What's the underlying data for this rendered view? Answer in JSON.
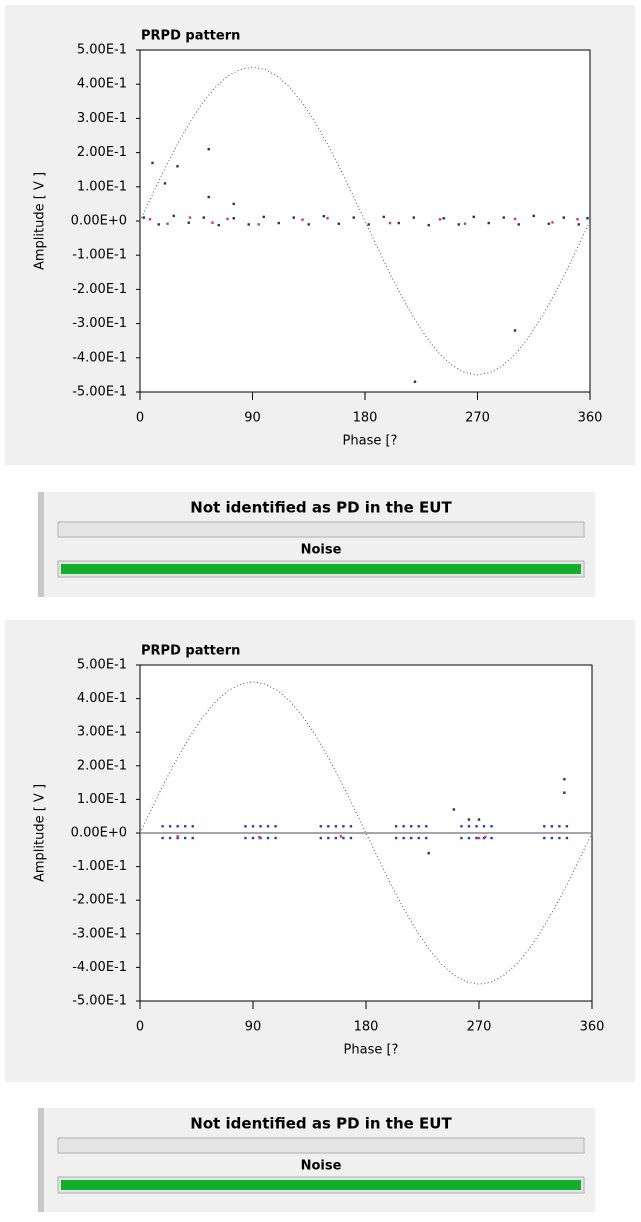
{
  "chart_data": [
    {
      "type": "scatter",
      "title": "PRPD pattern",
      "x_label": "Phase [?",
      "y_label": "Amplitude [ V ]",
      "xlim": [
        0,
        360
      ],
      "xticks": [
        0,
        90,
        180,
        270,
        360
      ],
      "ylim": [
        -0.5,
        0.5
      ],
      "yticks": [
        {
          "value": -0.5,
          "label": "-5.00E-1"
        },
        {
          "value": -0.4,
          "label": "-4.00E-1"
        },
        {
          "value": -0.3,
          "label": "-3.00E-1"
        },
        {
          "value": -0.2,
          "label": "-2.00E-1"
        },
        {
          "value": -0.1,
          "label": "-1.00E-1"
        },
        {
          "value": 0,
          "label": "0.00E+0"
        },
        {
          "value": 0.1,
          "label": "1.00E-1"
        },
        {
          "value": 0.2,
          "label": "2.00E-1"
        },
        {
          "value": 0.3,
          "label": "3.00E-1"
        },
        {
          "value": 0.4,
          "label": "4.00E-1"
        },
        {
          "value": 0.5,
          "label": "5.00E-1"
        }
      ],
      "zero_line": false,
      "series": [
        {
          "color": "#555555",
          "mode": "line",
          "x": [
            0,
            10,
            20,
            30,
            40,
            50,
            60,
            70,
            80,
            90,
            100,
            110,
            120,
            130,
            140,
            150,
            160,
            170,
            180,
            190,
            200,
            210,
            220,
            230,
            240,
            250,
            260,
            270,
            280,
            290,
            300,
            310,
            320,
            330,
            340,
            350,
            360
          ],
          "y": [
            0,
            0.078,
            0.154,
            0.225,
            0.289,
            0.345,
            0.39,
            0.423,
            0.443,
            0.45,
            0.443,
            0.423,
            0.39,
            0.345,
            0.289,
            0.225,
            0.154,
            0.078,
            0,
            -0.078,
            -0.154,
            -0.225,
            -0.289,
            -0.345,
            -0.39,
            -0.423,
            -0.443,
            -0.45,
            -0.443,
            -0.423,
            -0.39,
            -0.345,
            -0.289,
            -0.225,
            -0.154,
            -0.078,
            0
          ]
        },
        {
          "color": "#333333",
          "mode": "markers",
          "x": [
            3,
            15,
            27,
            39,
            51,
            63,
            75,
            87,
            99,
            111,
            123,
            135,
            147,
            159,
            171,
            183,
            195,
            207,
            219,
            231,
            243,
            255,
            267,
            279,
            291,
            303,
            315,
            327,
            339,
            351,
            358,
            10,
            20,
            30,
            55,
            55,
            75,
            220,
            300
          ],
          "y": [
            0.01,
            -0.01,
            0.015,
            -0.005,
            0.01,
            -0.012,
            0.008,
            -0.01,
            0.012,
            -0.006,
            0.01,
            -0.01,
            0.014,
            -0.008,
            0.01,
            -0.01,
            0.012,
            -0.006,
            0.01,
            -0.012,
            0.008,
            -0.01,
            0.012,
            -0.006,
            0.01,
            -0.01,
            0.015,
            -0.008,
            0.01,
            -0.01,
            0.008,
            0.17,
            0.11,
            0.16,
            0.21,
            0.07,
            0.05,
            -0.47,
            -0.32
          ]
        },
        {
          "color": "#e0306a",
          "mode": "markers",
          "x": [
            8,
            22,
            40,
            58,
            70,
            95,
            130,
            150,
            200,
            240,
            260,
            300,
            330,
            350
          ],
          "y": [
            0.005,
            -0.008,
            0.01,
            -0.005,
            0.006,
            -0.01,
            0.004,
            0.008,
            -0.006,
            0.005,
            -0.008,
            0.006,
            -0.004,
            0.005
          ]
        }
      ]
    },
    {
      "type": "scatter",
      "title": "PRPD pattern",
      "x_label": "Phase [?",
      "y_label": "Amplitude [ V ]",
      "xlim": [
        0,
        360
      ],
      "xticks": [
        0,
        90,
        180,
        270,
        360
      ],
      "ylim": [
        -0.5,
        0.5
      ],
      "yticks": [
        {
          "value": -0.5,
          "label": "-5.00E-1"
        },
        {
          "value": -0.4,
          "label": "-4.00E-1"
        },
        {
          "value": -0.3,
          "label": "-3.00E-1"
        },
        {
          "value": -0.2,
          "label": "-2.00E-1"
        },
        {
          "value": -0.1,
          "label": "-1.00E-1"
        },
        {
          "value": 0,
          "label": "0.00E+0"
        },
        {
          "value": 0.1,
          "label": "1.00E-1"
        },
        {
          "value": 0.2,
          "label": "2.00E-1"
        },
        {
          "value": 0.3,
          "label": "3.00E-1"
        },
        {
          "value": 0.4,
          "label": "4.00E-1"
        },
        {
          "value": 0.5,
          "label": "5.00E-1"
        }
      ],
      "zero_line": true,
      "series": [
        {
          "color": "#555555",
          "mode": "line",
          "x": [
            0,
            10,
            20,
            30,
            40,
            50,
            60,
            70,
            80,
            90,
            100,
            110,
            120,
            130,
            140,
            150,
            160,
            170,
            180,
            190,
            200,
            210,
            220,
            230,
            240,
            250,
            260,
            270,
            280,
            290,
            300,
            310,
            320,
            330,
            340,
            350,
            360
          ],
          "y": [
            0,
            0.078,
            0.154,
            0.225,
            0.289,
            0.345,
            0.39,
            0.423,
            0.443,
            0.45,
            0.443,
            0.423,
            0.39,
            0.345,
            0.289,
            0.225,
            0.154,
            0.078,
            0,
            -0.078,
            -0.154,
            -0.225,
            -0.289,
            -0.345,
            -0.39,
            -0.423,
            -0.443,
            -0.45,
            -0.443,
            -0.423,
            -0.39,
            -0.345,
            -0.289,
            -0.225,
            -0.154,
            -0.078,
            0
          ]
        },
        {
          "color": "#2040c0",
          "mode": "markers",
          "x": [
            18,
            24,
            30,
            36,
            42,
            18,
            24,
            30,
            36,
            42,
            84,
            90,
            96,
            102,
            108,
            84,
            90,
            96,
            102,
            108,
            144,
            150,
            156,
            162,
            168,
            144,
            150,
            156,
            162,
            168,
            204,
            210,
            216,
            222,
            228,
            204,
            210,
            216,
            222,
            228,
            256,
            262,
            268,
            274,
            280,
            256,
            262,
            268,
            274,
            280,
            322,
            328,
            334,
            340,
            322,
            328,
            334,
            340
          ],
          "y": [
            0.02,
            0.02,
            0.02,
            0.02,
            0.02,
            -0.015,
            -0.015,
            -0.015,
            -0.015,
            -0.015,
            0.02,
            0.02,
            0.02,
            0.02,
            0.02,
            -0.015,
            -0.015,
            -0.015,
            -0.015,
            -0.015,
            0.02,
            0.02,
            0.02,
            0.02,
            0.02,
            -0.015,
            -0.015,
            -0.015,
            -0.015,
            -0.015,
            0.02,
            0.02,
            0.02,
            0.02,
            0.02,
            -0.015,
            -0.015,
            -0.015,
            -0.015,
            -0.015,
            0.02,
            0.02,
            0.02,
            0.02,
            0.02,
            -0.015,
            -0.015,
            -0.015,
            -0.015,
            -0.015,
            0.02,
            0.02,
            0.02,
            0.02,
            -0.015,
            -0.015,
            -0.015,
            -0.015
          ]
        },
        {
          "color": "#e0306a",
          "mode": "markers",
          "x": [
            30,
            95,
            160,
            270,
            275
          ],
          "y": [
            -0.01,
            -0.012,
            -0.01,
            -0.015,
            -0.012
          ]
        },
        {
          "color": "#333333",
          "mode": "markers",
          "x": [
            250,
            262,
            270,
            338,
            338,
            230
          ],
          "y": [
            0.07,
            0.04,
            0.04,
            0.16,
            0.12,
            -0.06
          ]
        }
      ]
    }
  ],
  "panels": [
    {
      "status": "Not identified as PD in the EUT",
      "label": "Noise"
    },
    {
      "status": "Not identified as PD in the EUT",
      "label": "Noise"
    }
  ]
}
